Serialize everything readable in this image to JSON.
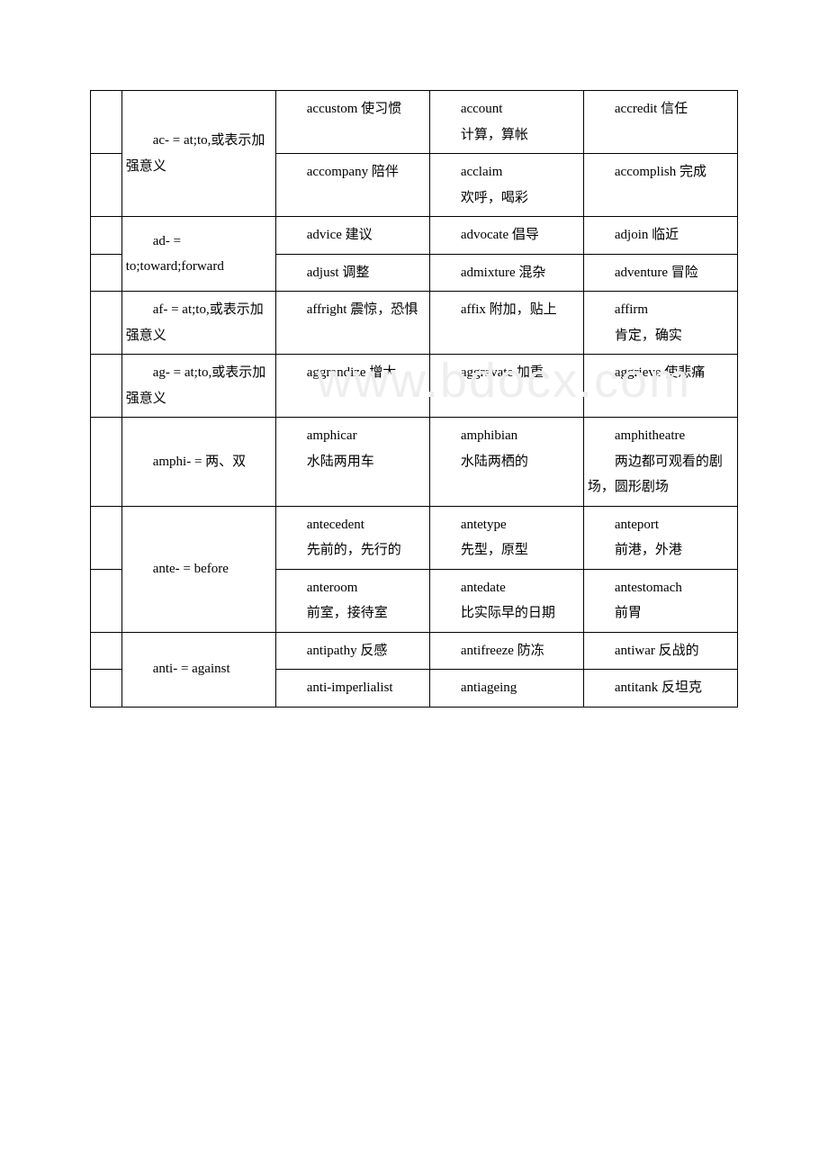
{
  "watermark": "www.bdocx.com",
  "rows": [
    {
      "label": "　　ac- = at;to,或表示加强意义",
      "labelRowspan": 2,
      "cells": [
        [
          "　　accustom 使习惯",
          "　　account\n\n　　计算，算帐",
          "　　accredit 信任"
        ],
        [
          "　　accompany 陪伴",
          "　　acclaim\n\n　　欢呼，喝彩",
          "　　accomplish 完成"
        ]
      ]
    },
    {
      "label": "　　ad- = to;toward;forward",
      "labelRowspan": 2,
      "cells": [
        [
          "　　advice 建议",
          "　　advocate 倡导",
          "　　adjoin 临近"
        ],
        [
          "　　adjust 调整",
          "　　admixture 混杂",
          "　　adventure 冒险"
        ]
      ]
    },
    {
      "label": "　　af- = at;to,或表示加强意义",
      "labelRowspan": 1,
      "cells": [
        [
          "　　affright 震惊，恐惧",
          "　　affix 附加，贴上",
          "　　affirm\n\n　　肯定，确实"
        ]
      ]
    },
    {
      "label": "　　ag- = at;to,或表示加强意义",
      "labelRowspan": 1,
      "cells": [
        [
          "　　aggrandize 增大",
          "　　aggravate 加重",
          "　　aggrieve 使悲痛"
        ]
      ]
    },
    {
      "label": "　　amphi- = 两、双",
      "labelRowspan": 1,
      "cells": [
        [
          "　　amphicar\n\n　　水陆两用车",
          "　　amphibian\n\n　　水陆两栖的",
          "　　amphitheatre\n\n　　两边都可观看的剧场，圆形剧场"
        ]
      ]
    },
    {
      "label": "　　ante- = before",
      "labelRowspan": 2,
      "cells": [
        [
          "　　antecedent\n\n　　先前的，先行的",
          "　　antetype\n\n　　先型，原型",
          "　　anteport\n\n　　前港，外港"
        ],
        [
          "　　anteroom\n\n　　前室，接待室",
          "　　antedate\n\n　　比实际早的日期",
          "　　antestomach\n\n　　前胃"
        ]
      ]
    },
    {
      "label": "　　anti- = against",
      "labelRowspan": 2,
      "cells": [
        [
          "　　antipathy 反感",
          "　　antifreeze 防冻",
          "　　antiwar 反战的"
        ],
        [
          "　　anti-imperlialist",
          "　　antiageing",
          "　　antitank 反坦克"
        ]
      ]
    }
  ]
}
